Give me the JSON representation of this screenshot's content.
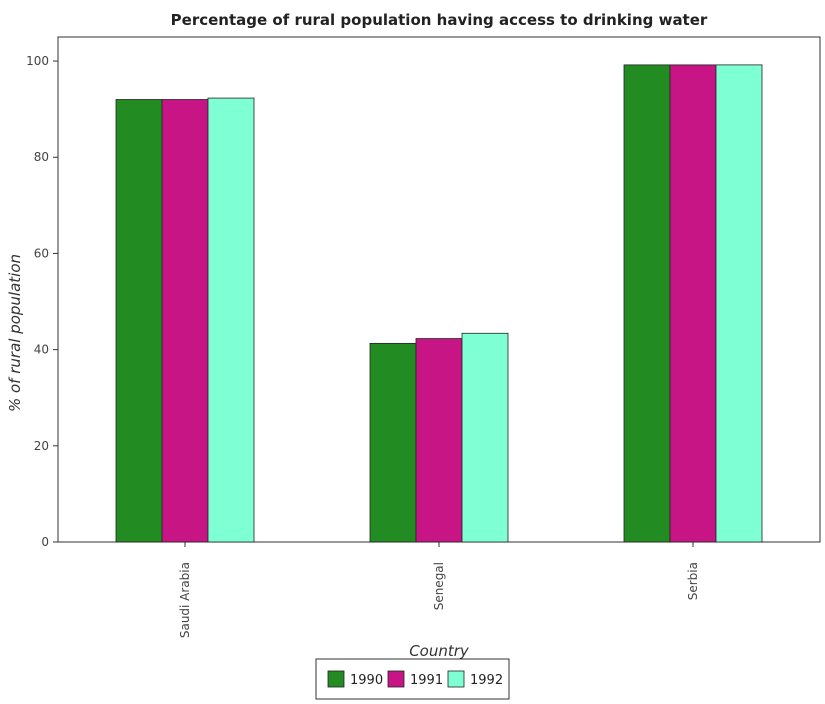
{
  "chart_data": {
    "type": "bar",
    "title": "Percentage of rural population having access to drinking water",
    "xlabel": "Country",
    "ylabel": "% of rural population",
    "categories": [
      "Saudi Arabia",
      "Senegal",
      "Serbia"
    ],
    "series": [
      {
        "name": "1990",
        "color": "#228b22",
        "values": [
          92.0,
          41.3,
          99.2
        ]
      },
      {
        "name": "1991",
        "color": "#c71585",
        "values": [
          92.0,
          42.3,
          99.2
        ]
      },
      {
        "name": "1992",
        "color": "#7fffd4",
        "values": [
          92.3,
          43.4,
          99.2
        ]
      }
    ],
    "ylim": [
      0,
      105
    ],
    "yticks": [
      0,
      20,
      40,
      60,
      80,
      100
    ],
    "grid": false,
    "legend_position": "bottom-center"
  }
}
